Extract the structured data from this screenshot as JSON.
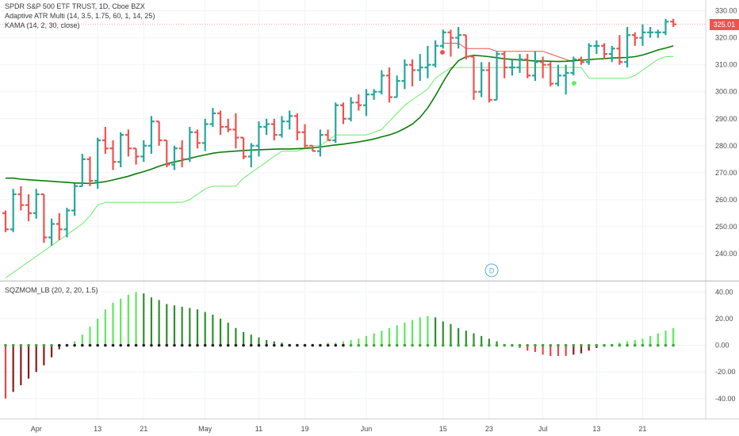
{
  "header": {
    "symbol_line": "SPDR S&P 500 ETF TRUST, 1D, Cboe BZX",
    "indicators": [
      "Adaptive ATR Multi (14, 3.5, 1.75, 60, 1, 14, 25)",
      "KAMA (14, 2, 30, close)"
    ]
  },
  "lower_pane": {
    "title": "SQZMOM_LB (20, 2, 20, 1.5)"
  },
  "last_price": {
    "label": "325.01",
    "color": "#ef5350"
  },
  "dividend_marker": {
    "label": "D"
  },
  "colors": {
    "up": "#26a69a",
    "down": "#ef5350",
    "kama": "#0a7d0a",
    "atr_line": "#66ee66",
    "atr_red": "#ef5350",
    "mom_strong_up": "#5ee85e",
    "mom_weak_up": "#2f8f2f",
    "mom_strong_down": "#8b1a1a",
    "mom_weak_down": "#e84545"
  },
  "chart_data": [
    {
      "type": "ohlc",
      "title": "SPDR S&P 500 ETF TRUST, 1D, Cboe BZX",
      "ylim": [
        230,
        334
      ],
      "y_ticks": [
        "330.00",
        "320.00",
        "310.00",
        "300.00",
        "290.00",
        "280.00",
        "270.00",
        "260.00",
        "250.00",
        "240.00"
      ],
      "x_ticks": [
        "Apr",
        "13",
        "21",
        "May",
        "11",
        "19",
        "Jun",
        "15",
        "23",
        "Jul",
        "13",
        "21"
      ],
      "x_tick_bar_index": [
        4,
        12,
        18,
        26,
        33,
        39,
        47,
        57,
        63,
        70,
        77,
        83
      ],
      "bars": [
        [
          255,
          256,
          248,
          249
        ],
        [
          249,
          264,
          248,
          262
        ],
        [
          262,
          265,
          256,
          258
        ],
        [
          258,
          262,
          252,
          255
        ],
        [
          255,
          264,
          253,
          262
        ],
        [
          262,
          262,
          244,
          246
        ],
        [
          246,
          253,
          243,
          251
        ],
        [
          251,
          255,
          245,
          249
        ],
        [
          249,
          257,
          246,
          256
        ],
        [
          256,
          266,
          254,
          265
        ],
        [
          265,
          277,
          265,
          275
        ],
        [
          275,
          276,
          265,
          267
        ],
        [
          267,
          283,
          264,
          282
        ],
        [
          282,
          287,
          277,
          279
        ],
        [
          279,
          282,
          271,
          274
        ],
        [
          274,
          285,
          272,
          284
        ],
        [
          284,
          286,
          276,
          279
        ],
        [
          279,
          279,
          273,
          276
        ],
        [
          276,
          282,
          274,
          280
        ],
        [
          280,
          291,
          277,
          289
        ],
        [
          289,
          289,
          280,
          282
        ],
        [
          282,
          282,
          272,
          273
        ],
        [
          273,
          280,
          271,
          279
        ],
        [
          279,
          282,
          272,
          275
        ],
        [
          275,
          287,
          274,
          285
        ],
        [
          285,
          286,
          279,
          281
        ],
        [
          281,
          290,
          278,
          288
        ],
        [
          288,
          294,
          287,
          292
        ],
        [
          292,
          293,
          284,
          287
        ],
        [
          287,
          290,
          285,
          286
        ],
        [
          286,
          292,
          279,
          283
        ],
        [
          283,
          283,
          275,
          276
        ],
        [
          276,
          281,
          272,
          280
        ],
        [
          280,
          289,
          276,
          287
        ],
        [
          287,
          290,
          284,
          288
        ],
        [
          288,
          290,
          282,
          284
        ],
        [
          284,
          291,
          283,
          289
        ],
        [
          289,
          293,
          286,
          291
        ],
        [
          291,
          292,
          282,
          285
        ],
        [
          285,
          288,
          279,
          280
        ],
        [
          280,
          280,
          278,
          278
        ],
        [
          278,
          286,
          276,
          284
        ],
        [
          284,
          286,
          282,
          282
        ],
        [
          282,
          296,
          281,
          295
        ],
        [
          295,
          296,
          288,
          290
        ],
        [
          290,
          298,
          289,
          296
        ],
        [
          296,
          299,
          293,
          295
        ],
        [
          295,
          301,
          291,
          299
        ],
        [
          299,
          301,
          297,
          300
        ],
        [
          300,
          308,
          299,
          306
        ],
        [
          306,
          309,
          296,
          298
        ],
        [
          298,
          306,
          298,
          304
        ],
        [
          304,
          312,
          301,
          310
        ],
        [
          310,
          312,
          302,
          308
        ],
        [
          308,
          314,
          304,
          309
        ],
        [
          309,
          317,
          305,
          310
        ],
        [
          310,
          319,
          309,
          317
        ],
        [
          317,
          323,
          316,
          322
        ],
        [
          322,
          323,
          313,
          320
        ],
        [
          320,
          324,
          316,
          321
        ],
        [
          321,
          321,
          312,
          313
        ],
        [
          313,
          313,
          297,
          300
        ],
        [
          300,
          311,
          298,
          308
        ],
        [
          308,
          311,
          296,
          297
        ],
        [
          297,
          315,
          297,
          314
        ],
        [
          314,
          315,
          305,
          309
        ],
        [
          309,
          312,
          306,
          309
        ],
        [
          309,
          314,
          307,
          312
        ],
        [
          312,
          314,
          305,
          306
        ],
        [
          306,
          315,
          304,
          311
        ],
        [
          311,
          313,
          305,
          310
        ],
        [
          310,
          311,
          302,
          303
        ],
        [
          303,
          310,
          302,
          306
        ],
        [
          306,
          310,
          299,
          307
        ],
        [
          307,
          313,
          306,
          312
        ],
        [
          312,
          313,
          310,
          311
        ],
        [
          311,
          318,
          310,
          317
        ],
        [
          317,
          319,
          314,
          317
        ],
        [
          317,
          318,
          312,
          314
        ],
        [
          314,
          317,
          311,
          316
        ],
        [
          316,
          321,
          310,
          311
        ],
        [
          311,
          324,
          309,
          321
        ],
        [
          321,
          322,
          317,
          320
        ],
        [
          320,
          325,
          317,
          322
        ],
        [
          322,
          324,
          320,
          322
        ],
        [
          322,
          323,
          320,
          322
        ],
        [
          322,
          327,
          321,
          326
        ],
        [
          326,
          327,
          324,
          325
        ]
      ]
    },
    {
      "type": "line",
      "series": [
        {
          "name": "KAMA (14, 2, 30, close)",
          "color": "#0a7d0a",
          "values": [
            268,
            268,
            267.6,
            267.4,
            267.2,
            267,
            266.8,
            266.6,
            266.4,
            266.2,
            266.1,
            266,
            266.3,
            266.7,
            267.3,
            268,
            268.7,
            269.6,
            270.4,
            271.3,
            272.4,
            273.3,
            274,
            274.6,
            275.3,
            276,
            276.6,
            277.2,
            277.6,
            277.8,
            278,
            278.2,
            278.4,
            278.5,
            278.6,
            278.7,
            278.8,
            278.8,
            278.9,
            279,
            279.2,
            279.5,
            279.9,
            280.3,
            280.6,
            281,
            281.4,
            281.9,
            282.5,
            283.3,
            284,
            285,
            286.4,
            288,
            290.5,
            294,
            298.5,
            303.6,
            308.2,
            311.5,
            313,
            313.5,
            313.3,
            313,
            312.6,
            312.2,
            312,
            311.8,
            311.6,
            311.4,
            311.4,
            311.3,
            311.2,
            311.3,
            311.5,
            311.7,
            311.9,
            312.1,
            312.3,
            312.5,
            312.6,
            312.7,
            313,
            313.6,
            314.5,
            315.5,
            316.2,
            317
          ]
        },
        {
          "name": "ATR stop (green)",
          "color": "#66ee66",
          "values": [
            231,
            233,
            235,
            237,
            239,
            241,
            243,
            245,
            247,
            249,
            251,
            254,
            258,
            259,
            259,
            259,
            259,
            259,
            259,
            259,
            259,
            259,
            259,
            259,
            260,
            262,
            264,
            265,
            265,
            265,
            265,
            268,
            270,
            272,
            274,
            276,
            278,
            278,
            278,
            279,
            280,
            280,
            282,
            284,
            284,
            284,
            284,
            284,
            285,
            286,
            289,
            292,
            295,
            297,
            299,
            301,
            305,
            307,
            309,
            309,
            309,
            309,
            309,
            309,
            309,
            309,
            309,
            309,
            309,
            309,
            309,
            309,
            309,
            309,
            309,
            309,
            305,
            305,
            305,
            305,
            305,
            305,
            306,
            308,
            310,
            312,
            313,
            313
          ]
        },
        {
          "name": "ATR stop (red)",
          "color": "#ef5350",
          "values": [
            null,
            null,
            null,
            null,
            null,
            null,
            null,
            null,
            null,
            null,
            null,
            null,
            null,
            null,
            null,
            null,
            null,
            null,
            null,
            null,
            null,
            null,
            null,
            null,
            null,
            null,
            null,
            null,
            null,
            null,
            null,
            null,
            null,
            null,
            null,
            null,
            null,
            null,
            null,
            null,
            null,
            null,
            null,
            null,
            null,
            null,
            null,
            null,
            null,
            null,
            null,
            null,
            null,
            null,
            null,
            null,
            null,
            318,
            318,
            318,
            316,
            316,
            316,
            316,
            315,
            315,
            315,
            315,
            315,
            315,
            315,
            314,
            313,
            312,
            311,
            null,
            null,
            null,
            null,
            null,
            null,
            null,
            null,
            null,
            null,
            null,
            null,
            null
          ]
        }
      ]
    },
    {
      "type": "bar",
      "title": "SQZMOM_LB (20, 2, 20, 1.5)",
      "ylim": [
        -55,
        48
      ],
      "y_ticks": [
        "40.00",
        "20.00",
        "0.00",
        "-20.00",
        "-40.00"
      ],
      "values": [
        -40,
        -35,
        -30,
        -25,
        -20,
        -15,
        -9,
        -3,
        1,
        3,
        8,
        14,
        20,
        27,
        32,
        35,
        38,
        40,
        39,
        36,
        34,
        31,
        30,
        29,
        28,
        27,
        25,
        23,
        20,
        17,
        13,
        10,
        8,
        6,
        4,
        3,
        2,
        1,
        1,
        1,
        1,
        1,
        2,
        2,
        3,
        4,
        5,
        7,
        9,
        11,
        13,
        15,
        17,
        19,
        21,
        22,
        21,
        18,
        16,
        13,
        11,
        9,
        7,
        5,
        3,
        1,
        -1,
        -2,
        -4,
        -5,
        -7,
        -8,
        -8,
        -8,
        -7,
        -6,
        -4,
        -2,
        -1,
        1,
        2,
        3,
        4,
        5,
        7,
        9,
        11,
        13
      ]
    }
  ]
}
